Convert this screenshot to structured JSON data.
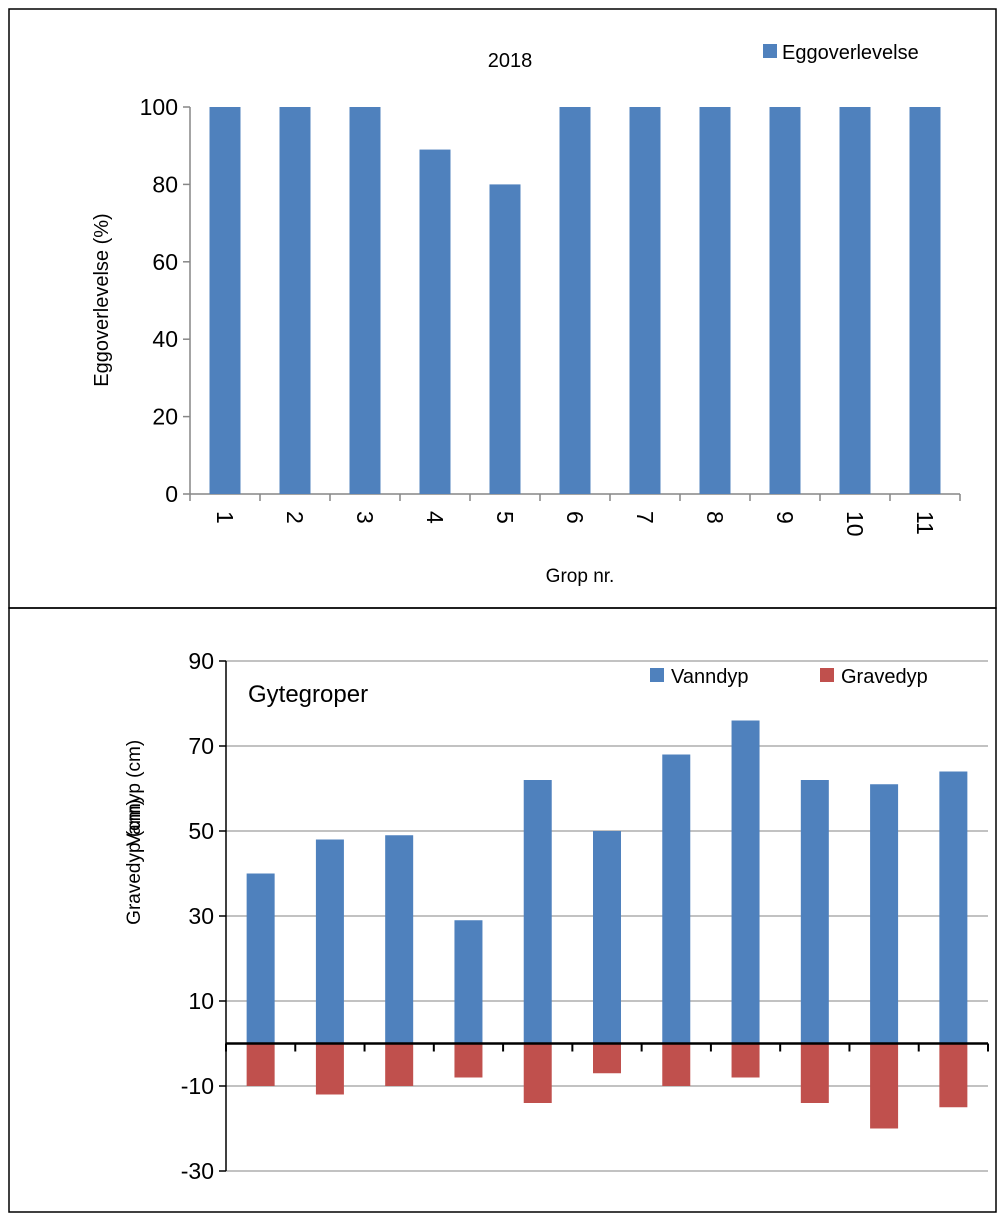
{
  "chart_data": [
    {
      "type": "bar",
      "title": "2018",
      "xlabel": "Grop nr.",
      "ylabel": "Eggoverlevelse (%)",
      "categories": [
        "1",
        "2",
        "3",
        "4",
        "5",
        "6",
        "7",
        "8",
        "9",
        "10",
        "11"
      ],
      "series": [
        {
          "name": "Eggoverlevelse",
          "values": [
            100,
            100,
            100,
            89,
            80,
            100,
            100,
            100,
            100,
            100,
            100
          ]
        }
      ],
      "ylim": [
        0,
        100
      ],
      "yticks": [
        0,
        20,
        40,
        60,
        80,
        100
      ],
      "grid": false,
      "legend": "top-right",
      "colors": {
        "Eggoverlevelse": "#4f81bd"
      }
    },
    {
      "type": "bar",
      "annotation": "Gytegroper",
      "ylabel_upper": "Vannyp (cm)",
      "ylabel_lower": "Gravedyp (cm)",
      "categories": [
        "1",
        "2",
        "3",
        "4",
        "5",
        "6",
        "7",
        "8",
        "9",
        "10",
        "11"
      ],
      "series": [
        {
          "name": "Vanndyp",
          "values": [
            40,
            48,
            49,
            29,
            62,
            50,
            68,
            76,
            62,
            61,
            64
          ]
        },
        {
          "name": "Gravedyp",
          "values": [
            -10,
            -12,
            -10,
            -8,
            -14,
            -7,
            -10,
            -8,
            -14,
            -20,
            -15
          ]
        }
      ],
      "ylim": [
        -30,
        90
      ],
      "yticks": [
        -30,
        -10,
        10,
        30,
        50,
        70,
        90
      ],
      "grid": true,
      "legend": "top-right",
      "colors": {
        "Vanndyp": "#4f81bd",
        "Gravedyp": "#c0504d"
      }
    }
  ]
}
